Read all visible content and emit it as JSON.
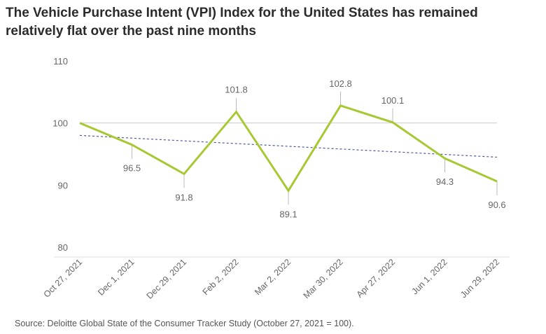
{
  "chart_data": {
    "type": "line",
    "title": "The Vehicle Purchase Intent (VPI) Index for the United States has remained relatively flat over the past nine months",
    "source": "Source: Deloitte Global State of the Consumer Tracker Study (October 27, 2021 = 100).",
    "categories": [
      "Oct 27, 2021",
      "Dec 1, 2021",
      "Dec 29, 2021",
      "Feb 2, 2022",
      "Mar 2, 2022",
      "Mar 30, 2022",
      "Apr 27, 2022",
      "Jun 1, 2022",
      "Jun 29, 2022"
    ],
    "series": [
      {
        "values": [
          100,
          96.5,
          91.8,
          101.8,
          89.1,
          102.8,
          100.1,
          94.3,
          90.6
        ],
        "data_labels": [
          "",
          "96.5",
          "91.8",
          "101.8",
          "89.1",
          "102.8",
          "100.1",
          "94.3",
          "90.6"
        ],
        "color": "#a6c933"
      }
    ],
    "trendline": {
      "start": 98,
      "end": 94.5,
      "color": "#4a5a9a",
      "style": "dashed"
    },
    "ylim": [
      80,
      110
    ],
    "yticks": [
      "80",
      "90",
      "100",
      "110"
    ],
    "reference_line": 100,
    "grid": false,
    "xlabel": "",
    "ylabel": ""
  }
}
